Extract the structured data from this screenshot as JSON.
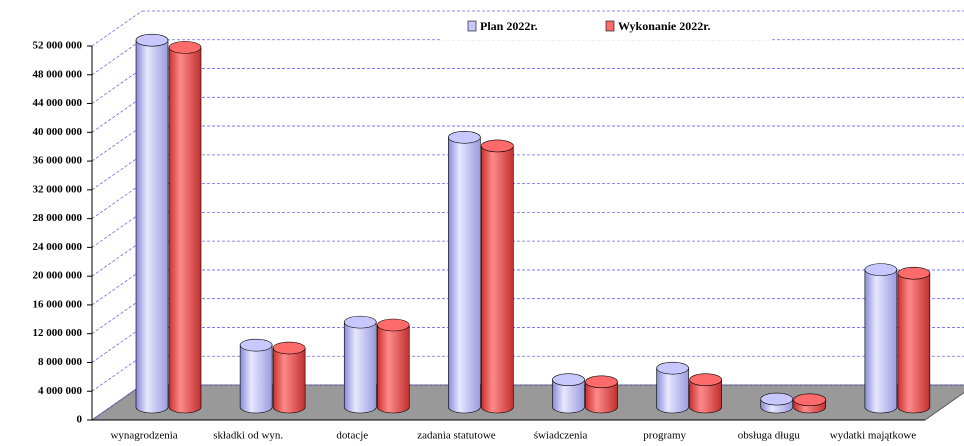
{
  "chart_data": {
    "type": "bar3d",
    "categories": [
      "wynagrodzenia",
      "składki od wyn.",
      "dotacje",
      "zadania statutowe",
      "świadczenia",
      "programy",
      "obsługa długu",
      "wydatki majątkowe"
    ],
    "series": [
      {
        "name": "Plan 2022r.",
        "color": "#c8c8ff",
        "values": [
          51000000,
          8600000,
          11800000,
          37500000,
          3800000,
          5400000,
          1100000,
          19100000
        ]
      },
      {
        "name": "Wykonanie 2022r.",
        "color": "#ff6a6a",
        "values": [
          50000000,
          8200000,
          11400000,
          36300000,
          3500000,
          3800000,
          1000000,
          18600000
        ]
      }
    ],
    "ylim": [
      0,
      52000000
    ],
    "yticks": [
      {
        "value": 0,
        "label": "0"
      },
      {
        "value": 4000000,
        "label": "4 000 000"
      },
      {
        "value": 8000000,
        "label": "8 000 000"
      },
      {
        "value": 12000000,
        "label": "12 000 000"
      },
      {
        "value": 16000000,
        "label": "16 000 000"
      },
      {
        "value": 20000000,
        "label": "20 000 000"
      },
      {
        "value": 24000000,
        "label": "24 000 000"
      },
      {
        "value": 28000000,
        "label": "28 000 000"
      },
      {
        "value": 32000000,
        "label": "32 000 000"
      },
      {
        "value": 36000000,
        "label": "36 000 000"
      },
      {
        "value": 40000000,
        "label": "40 000 000"
      },
      {
        "value": 44000000,
        "label": "44 000 000"
      },
      {
        "value": 48000000,
        "label": "48 000 000"
      },
      {
        "value": 52000000,
        "label": "52 000 000"
      }
    ],
    "grid": true,
    "legend": "top"
  }
}
